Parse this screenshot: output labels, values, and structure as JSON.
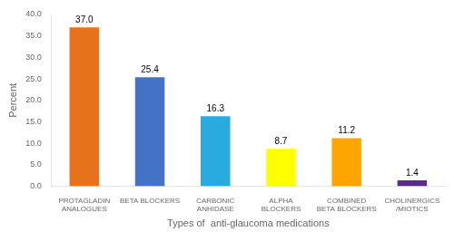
{
  "chart_data": {
    "type": "bar",
    "xlabel": "Types of  anti-glaucoma medications",
    "ylabel": "Percent",
    "categories": [
      "PROTAGLADIN\nANALOGUES",
      "BETA BLOCKERS",
      "CARBONIC\nANHIDASE",
      "ALPHA\nBLOCKERS",
      "COMBINED\nBETA BLOCKERS",
      "CHOLINERGICS\n/MIOTICS"
    ],
    "values": [
      37.0,
      25.4,
      16.3,
      8.7,
      11.2,
      1.4
    ],
    "value_labels": [
      "37.0",
      "25.4",
      "16.3",
      "8.7",
      "11.2",
      "1.4"
    ],
    "colors": [
      "#E8721C",
      "#4472C4",
      "#29ABE2",
      "#FFFF00",
      "#FFA500",
      "#5B2C8D"
    ],
    "ylim": [
      0,
      40
    ],
    "yticks": [
      {
        "value": 0,
        "label": "0.0"
      },
      {
        "value": 5,
        "label": "5.0"
      },
      {
        "value": 10,
        "label": "10.0"
      },
      {
        "value": 15,
        "label": "15.0"
      },
      {
        "value": 20,
        "label": "20.0"
      },
      {
        "value": 25,
        "label": "25.0"
      },
      {
        "value": 30,
        "label": "30.0"
      },
      {
        "value": 35,
        "label": "35.0"
      },
      {
        "value": 40,
        "label": "40.0"
      }
    ],
    "grid": false,
    "data_labels": true
  }
}
